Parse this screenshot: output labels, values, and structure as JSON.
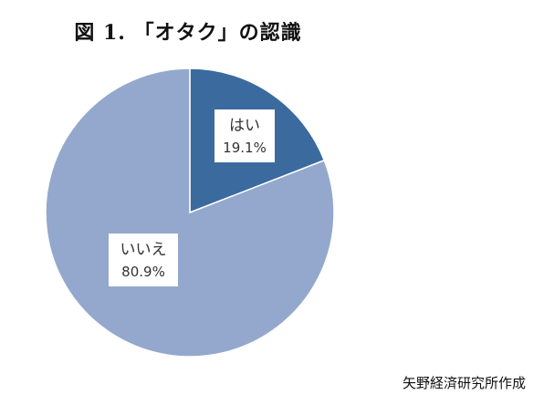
{
  "title": "図 1. 「オタク」の認識",
  "source": "矢野経済研究所作成",
  "colors": {
    "yes": "#3b6a9e",
    "no": "#93a8cc",
    "edge": "#ffffff"
  },
  "chart_data": {
    "type": "pie",
    "title": "図 1. 「オタク」の認識",
    "start_angle_deg": 0,
    "direction": "clockwise",
    "slices": [
      {
        "label": "はい",
        "value": 19.1,
        "value_label": "19.1%",
        "color": "#3b6a9e"
      },
      {
        "label": "いいえ",
        "value": 80.9,
        "value_label": "80.9%",
        "color": "#93a8cc"
      }
    ]
  }
}
